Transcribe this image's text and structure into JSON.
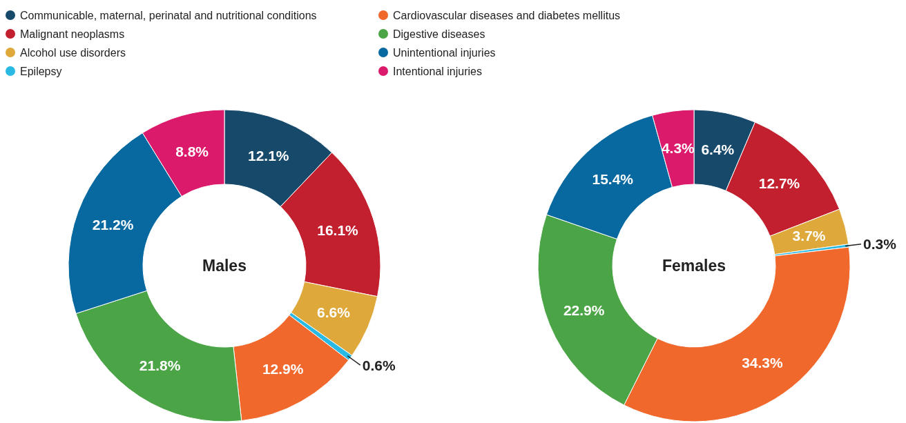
{
  "chart_data": {
    "type": "donut",
    "legend": "top",
    "data_labels": true,
    "categories": [
      "Communicable, maternal, perinatal and nutritional conditions",
      "Malignant neoplasms",
      "Alcohol use disorders",
      "Epilepsy",
      "Cardiovascular diseases and diabetes mellitus",
      "Digestive diseases",
      "Unintentional injuries",
      "Intentional injuries"
    ],
    "colors": [
      "#17496b",
      "#c3202f",
      "#dea83a",
      "#29b9e3",
      "#f0682c",
      "#4ba546",
      "#0869a0",
      "#dc1a6b"
    ],
    "series": [
      {
        "name": "Males",
        "values": [
          12.1,
          16.1,
          6.6,
          0.6,
          12.9,
          21.8,
          21.2,
          8.8
        ],
        "value_labels": [
          "12.1%",
          "16.1%",
          "6.6%",
          "0.6%",
          "12.9%",
          "21.8%",
          "21.2%",
          "8.8%"
        ]
      },
      {
        "name": "Females",
        "values": [
          6.4,
          12.7,
          3.7,
          0.3,
          34.3,
          22.9,
          15.4,
          4.3
        ],
        "value_labels": [
          "6.4%",
          "12.7%",
          "3.7%",
          "0.3%",
          "34.3%",
          "22.9%",
          "15.4%",
          "4.3%"
        ]
      }
    ]
  }
}
